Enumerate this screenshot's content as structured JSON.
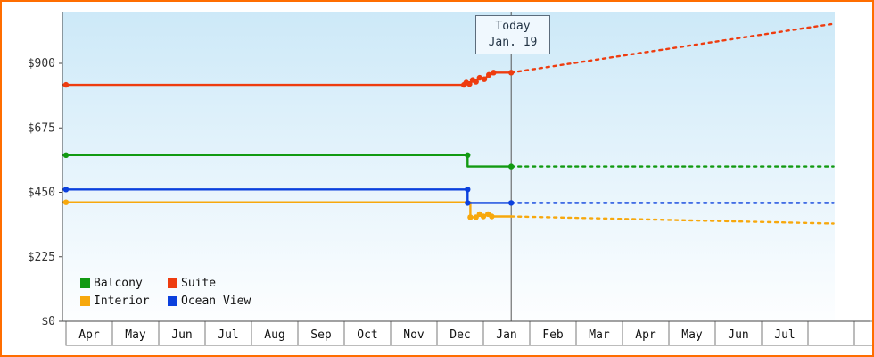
{
  "colors": {
    "frame_border": "#ff6d00",
    "plot_bg_top": "#cde9f8",
    "plot_bg_bottom": "#fdfeff",
    "axis": "#444444",
    "month_box_border": "#7a7a7a",
    "today_line": "#555555"
  },
  "today_box": {
    "line1": "Today",
    "line2": "Jan. 19"
  },
  "chart_data": {
    "type": "line",
    "title": "",
    "x_unit": "months_since_april",
    "today": {
      "month_index": 9.6,
      "label": "Today",
      "date": "Jan. 19"
    },
    "y_axis": {
      "tick_labels": [
        "$900",
        "$675",
        "$450",
        "$225",
        "$0"
      ],
      "tick_values": [
        900,
        675,
        450,
        225,
        0
      ],
      "ylim": [
        0,
        1077
      ],
      "grid": false
    },
    "x_axis": {
      "month_labels": [
        "Apr",
        "May",
        "Jun",
        "Jul",
        "Aug",
        "Sep",
        "Oct",
        "Nov",
        "Dec",
        "Jan",
        "Feb",
        "Mar",
        "Apr",
        "May",
        "Jun",
        "Jul",
        "",
        ""
      ]
    },
    "legend_position": "bottom-left-inside",
    "series": [
      {
        "name": "Balcony",
        "color": "#129a12",
        "solid": [
          [
            0,
            580
          ],
          [
            8.66,
            580
          ],
          [
            8.66,
            540
          ],
          [
            9.6,
            540
          ]
        ],
        "markers": [
          [
            0,
            580
          ],
          [
            8.66,
            580
          ],
          [
            9.6,
            540
          ]
        ],
        "dotted": [
          [
            9.6,
            540
          ],
          [
            16.55,
            540
          ]
        ]
      },
      {
        "name": "Suite",
        "color": "#ee3c0f",
        "solid": [
          [
            0,
            825
          ],
          [
            8.58,
            825
          ],
          [
            8.63,
            833
          ],
          [
            8.7,
            828
          ],
          [
            8.77,
            842
          ],
          [
            8.84,
            836
          ],
          [
            8.92,
            850
          ],
          [
            9.02,
            845
          ],
          [
            9.12,
            860
          ],
          [
            9.22,
            868
          ],
          [
            9.6,
            868
          ]
        ],
        "markers": [
          [
            0,
            825
          ],
          [
            8.58,
            825
          ],
          [
            8.63,
            833
          ],
          [
            8.7,
            828
          ],
          [
            8.77,
            842
          ],
          [
            8.84,
            836
          ],
          [
            8.92,
            850
          ],
          [
            9.02,
            845
          ],
          [
            9.12,
            860
          ],
          [
            9.22,
            868
          ],
          [
            9.6,
            868
          ]
        ],
        "dotted": [
          [
            9.6,
            868
          ],
          [
            16.55,
            1038
          ]
        ]
      },
      {
        "name": "Interior",
        "color": "#f7a80d",
        "solid": [
          [
            0,
            415
          ],
          [
            8.72,
            415
          ],
          [
            8.72,
            363
          ],
          [
            8.84,
            363
          ],
          [
            8.92,
            374
          ],
          [
            9.0,
            366
          ],
          [
            9.1,
            374
          ],
          [
            9.18,
            366
          ],
          [
            9.6,
            366
          ]
        ],
        "markers": [
          [
            0,
            415
          ],
          [
            8.72,
            363
          ],
          [
            8.84,
            363
          ],
          [
            8.92,
            374
          ],
          [
            9.0,
            366
          ],
          [
            9.1,
            374
          ],
          [
            9.18,
            366
          ]
        ],
        "dotted": [
          [
            9.6,
            366
          ],
          [
            16.55,
            341
          ]
        ]
      },
      {
        "name": "Ocean View",
        "color": "#0b40dd",
        "solid": [
          [
            0,
            460
          ],
          [
            8.66,
            460
          ],
          [
            8.66,
            413
          ],
          [
            9.6,
            413
          ]
        ],
        "markers": [
          [
            0,
            460
          ],
          [
            8.66,
            460
          ],
          [
            8.66,
            413
          ],
          [
            9.6,
            413
          ]
        ],
        "dotted": [
          [
            9.6,
            413
          ],
          [
            16.55,
            413
          ]
        ]
      }
    ],
    "legend": [
      {
        "label": "Balcony",
        "color": "#129a12"
      },
      {
        "label": "Suite",
        "color": "#ee3c0f"
      },
      {
        "label": "Interior",
        "color": "#f7a80d"
      },
      {
        "label": "Ocean View",
        "color": "#0b40dd"
      }
    ]
  }
}
